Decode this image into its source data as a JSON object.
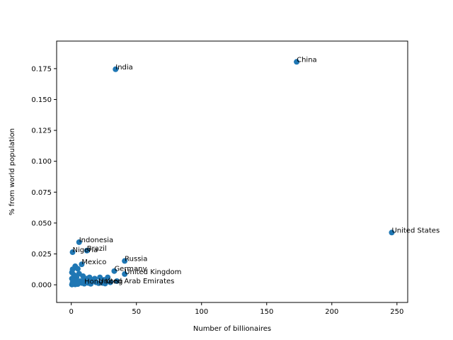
{
  "chart_data": {
    "type": "scatter",
    "xlabel": "Number of billionaires",
    "ylabel": "% from world population",
    "xlim": [
      -11.25,
      258.25
    ],
    "ylim": [
      -0.0143,
      0.1973
    ],
    "xticks": [
      0,
      50,
      100,
      150,
      200,
      250
    ],
    "yticks": [
      0.0,
      0.025,
      0.05,
      0.075,
      0.1,
      0.125,
      0.15,
      0.175
    ],
    "ytick_labels": [
      "0.000",
      "0.025",
      "0.050",
      "0.075",
      "0.100",
      "0.125",
      "0.150",
      "0.175"
    ],
    "grid": false,
    "marker_color": "#1f77b4",
    "labeled_points": [
      {
        "label": "China",
        "x": 173,
        "y": 0.1805
      },
      {
        "label": "India",
        "x": 34,
        "y": 0.1745
      },
      {
        "label": "United States",
        "x": 246,
        "y": 0.0423
      },
      {
        "label": "Indonesia",
        "x": 6,
        "y": 0.0345
      },
      {
        "label": "Brazil",
        "x": 12,
        "y": 0.0277
      },
      {
        "label": "Nigeria",
        "x": 1,
        "y": 0.0264
      },
      {
        "label": "Russia",
        "x": 41,
        "y": 0.0193
      },
      {
        "label": "Mexico",
        "x": 8,
        "y": 0.0166
      },
      {
        "label": "Germany",
        "x": 33,
        "y": 0.0111
      },
      {
        "label": "United Kingdom",
        "x": 41,
        "y": 0.0087
      },
      {
        "label": "United Arab Emirates",
        "x": 21,
        "y": 0.0013
      },
      {
        "label": "Hong Kong",
        "x": 10,
        "y": 0.0009
      }
    ],
    "unlabeled_points": [
      {
        "x": 1,
        "y": 0.0125
      },
      {
        "x": 0.5,
        "y": 0.01
      },
      {
        "x": 3,
        "y": 0.015
      },
      {
        "x": 5,
        "y": 0.013
      },
      {
        "x": 2,
        "y": 0.008
      },
      {
        "x": 4,
        "y": 0.006
      },
      {
        "x": 6,
        "y": 0.009
      },
      {
        "x": 9,
        "y": 0.007
      },
      {
        "x": 12,
        "y": 0.005
      },
      {
        "x": 14,
        "y": 0.006
      },
      {
        "x": 18,
        "y": 0.005
      },
      {
        "x": 22,
        "y": 0.006
      },
      {
        "x": 25,
        "y": 0.004
      },
      {
        "x": 28,
        "y": 0.006
      },
      {
        "x": 16,
        "y": 0.003
      },
      {
        "x": 11,
        "y": 0.003
      },
      {
        "x": 7,
        "y": 0.003
      },
      {
        "x": 3,
        "y": 0.004
      },
      {
        "x": 1,
        "y": 0.002
      },
      {
        "x": 0.5,
        "y": 0.005
      },
      {
        "x": 2,
        "y": 0.001
      },
      {
        "x": 4,
        "y": 0.0015
      },
      {
        "x": 6,
        "y": 0.002
      },
      {
        "x": 8,
        "y": 0.0015
      },
      {
        "x": 13,
        "y": 0.0015
      },
      {
        "x": 19,
        "y": 0.002
      },
      {
        "x": 24,
        "y": 0.0015
      },
      {
        "x": 30,
        "y": 0.002
      },
      {
        "x": 1,
        "y": 0.0005
      },
      {
        "x": 3,
        "y": 0.0003
      },
      {
        "x": 5,
        "y": 0.0006
      },
      {
        "x": 0.5,
        "y": 0.0002
      },
      {
        "x": 15,
        "y": 0.0008
      },
      {
        "x": 26,
        "y": 0.001
      },
      {
        "x": 35,
        "y": 0.003
      },
      {
        "x": 10,
        "y": 0.0045
      }
    ]
  }
}
